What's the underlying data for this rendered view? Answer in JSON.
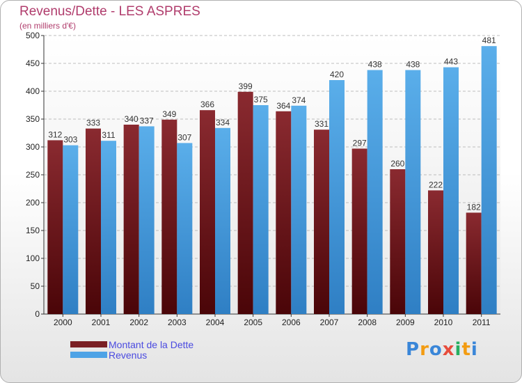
{
  "title": "Revenus/Dette - LES ASPRES",
  "subtitle": "(en milliers d'€)",
  "brand": "Proxiti",
  "colors": {
    "title": "#b03c6c",
    "dette": "#7a1f24",
    "revenus": "#4ea3e6",
    "legend_text": "#4a4ae0"
  },
  "chart_data": {
    "type": "bar",
    "title": "Revenus/Dette - LES ASPRES",
    "ylabel": "(en milliers d'€)",
    "xlabel": "",
    "categories": [
      "2000",
      "2001",
      "2002",
      "2003",
      "2004",
      "2005",
      "2006",
      "2007",
      "2008",
      "2009",
      "2010",
      "2011"
    ],
    "series": [
      {
        "name": "Montant de la Dette",
        "values": [
          312,
          333,
          340,
          349,
          366,
          399,
          364,
          331,
          297,
          260,
          222,
          182
        ]
      },
      {
        "name": "Revenus",
        "values": [
          303,
          311,
          337,
          307,
          334,
          375,
          374,
          420,
          438,
          438,
          443,
          481
        ]
      }
    ],
    "ylim": [
      0,
      500
    ],
    "yticks": [
      0,
      50,
      100,
      150,
      200,
      250,
      300,
      350,
      400,
      450,
      500
    ],
    "grid": true,
    "legend": "bottom-left"
  }
}
